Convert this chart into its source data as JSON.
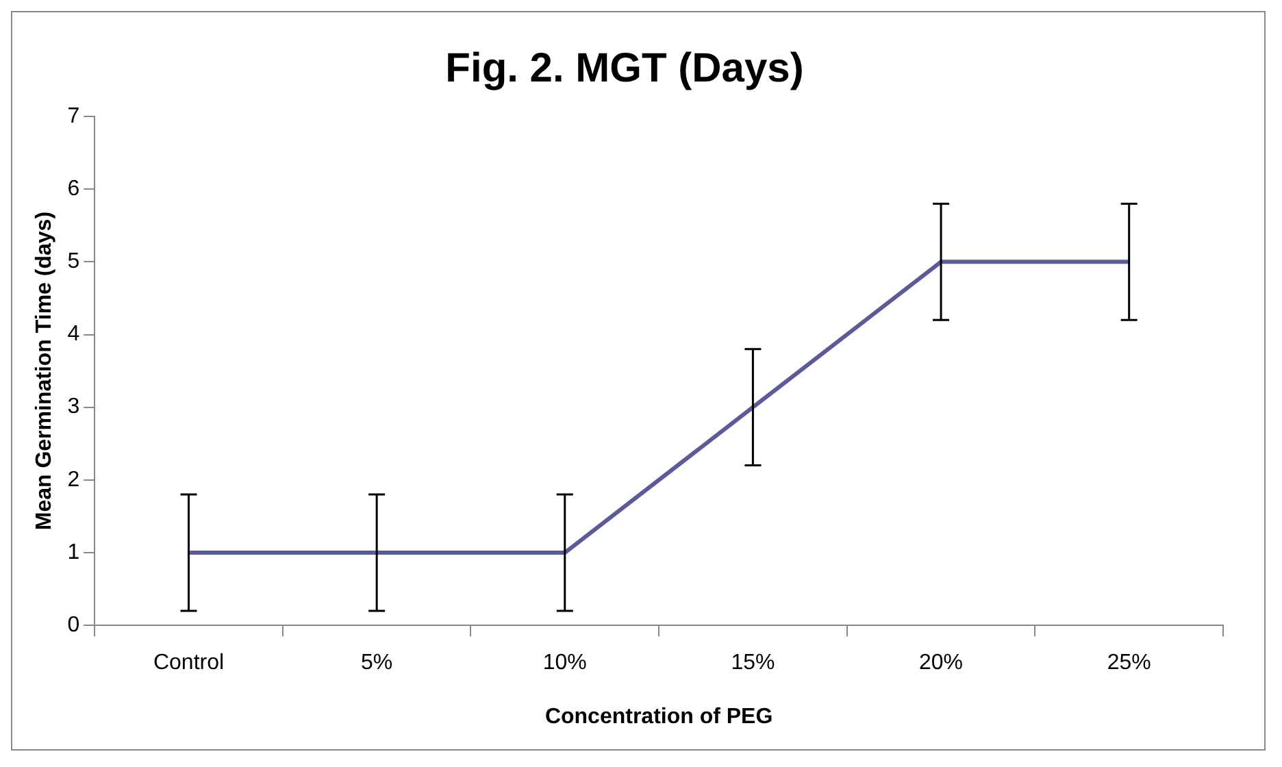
{
  "chart_data": {
    "type": "line",
    "title": "Fig. 2. MGT (Days)",
    "xlabel": "Concentration of PEG",
    "ylabel": "Mean Germination Time (days)",
    "categories": [
      "Control",
      "5%",
      "10%",
      "15%",
      "20%",
      "25%"
    ],
    "series": [
      {
        "color": "#5b5b9c",
        "values": [
          1,
          1,
          1,
          3,
          5,
          5
        ],
        "errors": [
          0.8,
          0.8,
          0.8,
          0.8,
          0.8,
          0.8
        ]
      }
    ],
    "ylim": [
      0,
      7
    ],
    "yticks": [
      0,
      1,
      2,
      3,
      4,
      5,
      6,
      7
    ],
    "grid": false,
    "legend": false,
    "marker": "none",
    "line_style": "solid"
  }
}
